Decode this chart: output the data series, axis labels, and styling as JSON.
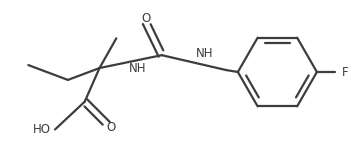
{
  "bg_color": "#ffffff",
  "line_color": "#3d3d3d",
  "line_width": 1.6,
  "font_size": 8.5,
  "figsize": [
    3.5,
    1.45
  ],
  "dpi": 100,
  "xlim": [
    0,
    350
  ],
  "ylim": [
    0,
    145
  ]
}
